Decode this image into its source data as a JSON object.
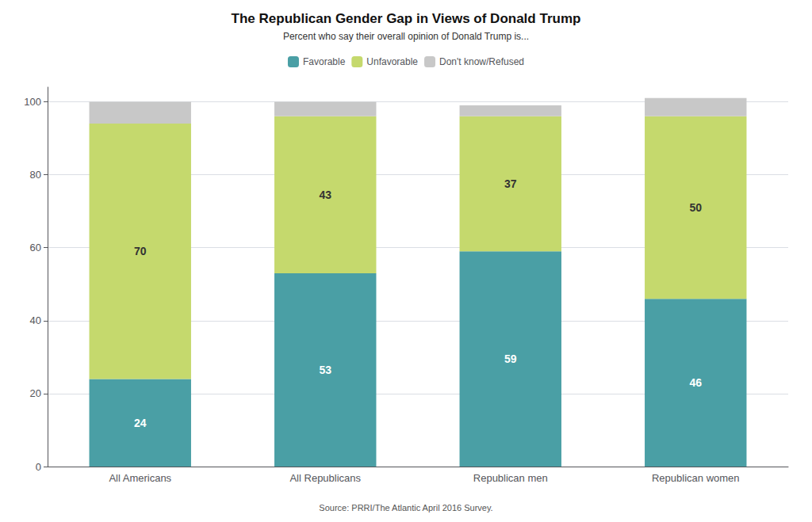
{
  "chart_data": {
    "type": "bar",
    "stacked": true,
    "title": "The Republican Gender Gap in Views of Donald Trump",
    "subtitle": "Percent who say their overall opinion of Donald Trump is...",
    "source": "Source: PRRI/The Atlantic April 2016 Survey.",
    "categories": [
      "All Americans",
      "All Republicans",
      "Republican men",
      "Republican women"
    ],
    "series": [
      {
        "name": "Favorable",
        "color": "#4a9fa5",
        "values": [
          24,
          53,
          59,
          46
        ],
        "data_labels": true
      },
      {
        "name": "Unfavorable",
        "color": "#c5d96d",
        "values": [
          70,
          43,
          37,
          50
        ],
        "data_labels": true
      },
      {
        "name": "Don't know/Refused",
        "color": "#c8c8c8",
        "values": [
          6,
          4,
          3,
          5
        ],
        "data_labels": false
      }
    ],
    "ylim": [
      0,
      104
    ],
    "yticks": [
      0,
      20,
      40,
      60,
      80,
      100
    ],
    "grid": true,
    "legend": "top"
  }
}
